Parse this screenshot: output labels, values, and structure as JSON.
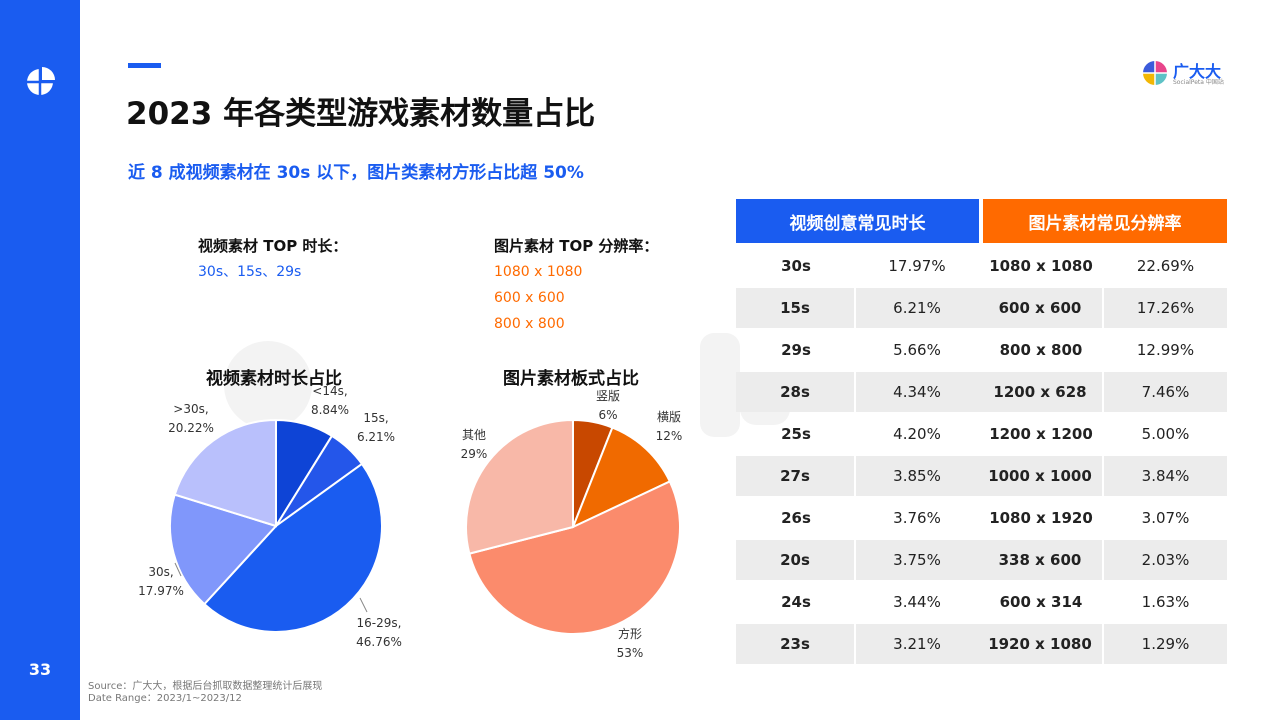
{
  "page": {
    "title": "2023 年各类型游戏素材数量占比",
    "subtitle": "近 8 成视频素材在 30s 以下，图片类素材方形占比超 50%",
    "page_number": "33"
  },
  "brand": {
    "name": "广大大",
    "sub": "SocialPeta 中国站"
  },
  "left_block": {
    "heading": "视频素材 TOP 时长：",
    "top_items": "30s、15s、29s"
  },
  "right_block": {
    "heading": "图片素材 TOP 分辨率：",
    "top_items": [
      "1080 x 1080",
      "600 x 600",
      "800 x 800"
    ]
  },
  "chart_data": [
    {
      "type": "pie",
      "title": "视频素材时长占比",
      "slices": [
        {
          "label": "<14s,",
          "value": 8.84,
          "value_text": "8.84%",
          "color": "#0e44d6"
        },
        {
          "label": "15s,",
          "value": 6.21,
          "value_text": "6.21%",
          "color": "#2456ea"
        },
        {
          "label": "16-29s,",
          "value": 46.76,
          "value_text": "46.76%",
          "color": "#1a5cf0"
        },
        {
          "label": "30s,",
          "value": 17.97,
          "value_text": "17.97%",
          "color": "#8097fb"
        },
        {
          "label": ">30s,",
          "value": 20.22,
          "value_text": "20.22%",
          "color": "#b9c0fc"
        }
      ]
    },
    {
      "type": "pie",
      "title": "图片素材板式占比",
      "slices": [
        {
          "label": "竖版",
          "value": 6,
          "value_text": "6%",
          "color": "#c84800"
        },
        {
          "label": "横版",
          "value": 12,
          "value_text": "12%",
          "color": "#f06a00"
        },
        {
          "label": "方形",
          "value": 53,
          "value_text": "53%",
          "color": "#fb8b6c"
        },
        {
          "label": "其他",
          "value": 29,
          "value_text": "29%",
          "color": "#f8b8a8"
        }
      ]
    },
    {
      "type": "table",
      "headers": [
        "视频创意常见时长",
        "图片素材常见分辨率"
      ],
      "rows": [
        [
          "30s",
          "17.97%",
          "1080 x 1080",
          "22.69%"
        ],
        [
          "15s",
          "6.21%",
          "600 x 600",
          "17.26%"
        ],
        [
          "29s",
          "5.66%",
          "800 x 800",
          "12.99%"
        ],
        [
          "28s",
          "4.34%",
          "1200 x 628",
          "7.46%"
        ],
        [
          "25s",
          "4.20%",
          "1200 x 1200",
          "5.00%"
        ],
        [
          "27s",
          "3.85%",
          "1000 x 1000",
          "3.84%"
        ],
        [
          "26s",
          "3.76%",
          "1080 x 1920",
          "3.07%"
        ],
        [
          "20s",
          "3.75%",
          "338 x 600",
          "2.03%"
        ],
        [
          "24s",
          "3.44%",
          "600 x 314",
          "1.63%"
        ],
        [
          "23s",
          "3.21%",
          "1920 x 1080",
          "1.29%"
        ]
      ]
    }
  ],
  "source": {
    "line1": "Source：广大大，根据后台抓取数据整理统计后展现",
    "line2": "Date Range：2023/1~2023/12"
  },
  "colors": {
    "blue": "#1a5cf0",
    "orange": "#ff6a00",
    "row_shade": "#ececec"
  }
}
